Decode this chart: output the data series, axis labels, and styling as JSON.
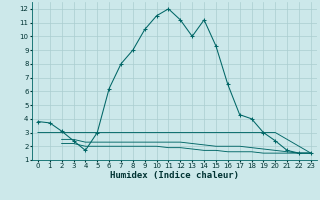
{
  "xlabel": "Humidex (Indice chaleur)",
  "bg_color": "#cce8ea",
  "grid_color": "#aacdd0",
  "line_color": "#006666",
  "x_main": [
    0,
    1,
    2,
    3,
    4,
    5,
    6,
    7,
    8,
    9,
    10,
    11,
    12,
    13,
    14,
    15,
    16,
    17,
    18,
    19,
    20,
    21,
    22,
    23
  ],
  "y_main": [
    3.8,
    3.7,
    3.1,
    2.4,
    1.7,
    3.0,
    6.2,
    8.0,
    9.0,
    10.5,
    11.5,
    12.0,
    11.2,
    10.0,
    11.2,
    9.3,
    6.5,
    4.3,
    4.0,
    3.0,
    2.4,
    1.7,
    1.5,
    1.5
  ],
  "x_flat1": [
    0,
    1,
    2,
    3,
    4,
    5,
    6,
    7,
    8,
    9,
    10,
    11,
    12,
    13,
    14,
    15,
    16,
    17,
    18,
    19,
    20,
    21,
    22,
    23
  ],
  "y_flat1": [
    3.0,
    3.0,
    3.0,
    3.0,
    3.0,
    3.0,
    3.0,
    3.0,
    3.0,
    3.0,
    3.0,
    3.0,
    3.0,
    3.0,
    3.0,
    3.0,
    3.0,
    3.0,
    3.0,
    3.0,
    3.0,
    2.5,
    2.0,
    1.5
  ],
  "x_flat2": [
    2,
    3,
    4,
    5,
    6,
    7,
    8,
    9,
    10,
    11,
    12,
    13,
    14,
    15,
    16,
    17,
    18,
    19,
    20,
    21,
    22,
    23
  ],
  "y_flat2": [
    2.5,
    2.5,
    2.3,
    2.3,
    2.3,
    2.3,
    2.3,
    2.3,
    2.3,
    2.3,
    2.3,
    2.2,
    2.1,
    2.0,
    2.0,
    2.0,
    1.9,
    1.8,
    1.7,
    1.6,
    1.5,
    1.5
  ],
  "x_flat3": [
    2,
    3,
    4,
    5,
    6,
    7,
    8,
    9,
    10,
    11,
    12,
    13,
    14,
    15,
    16,
    17,
    18,
    19,
    20,
    21,
    22,
    23
  ],
  "y_flat3": [
    2.2,
    2.2,
    2.0,
    2.0,
    2.0,
    2.0,
    2.0,
    2.0,
    2.0,
    1.9,
    1.9,
    1.8,
    1.7,
    1.7,
    1.6,
    1.6,
    1.6,
    1.5,
    1.5,
    1.5,
    1.5,
    1.5
  ],
  "xlim": [
    -0.5,
    23.5
  ],
  "ylim": [
    1.0,
    12.5
  ],
  "xticks": [
    0,
    1,
    2,
    3,
    4,
    5,
    6,
    7,
    8,
    9,
    10,
    11,
    12,
    13,
    14,
    15,
    16,
    17,
    18,
    19,
    20,
    21,
    22,
    23
  ],
  "yticks": [
    1,
    2,
    3,
    4,
    5,
    6,
    7,
    8,
    9,
    10,
    11,
    12
  ],
  "tick_fontsize": 5.0,
  "xlabel_fontsize": 6.5
}
